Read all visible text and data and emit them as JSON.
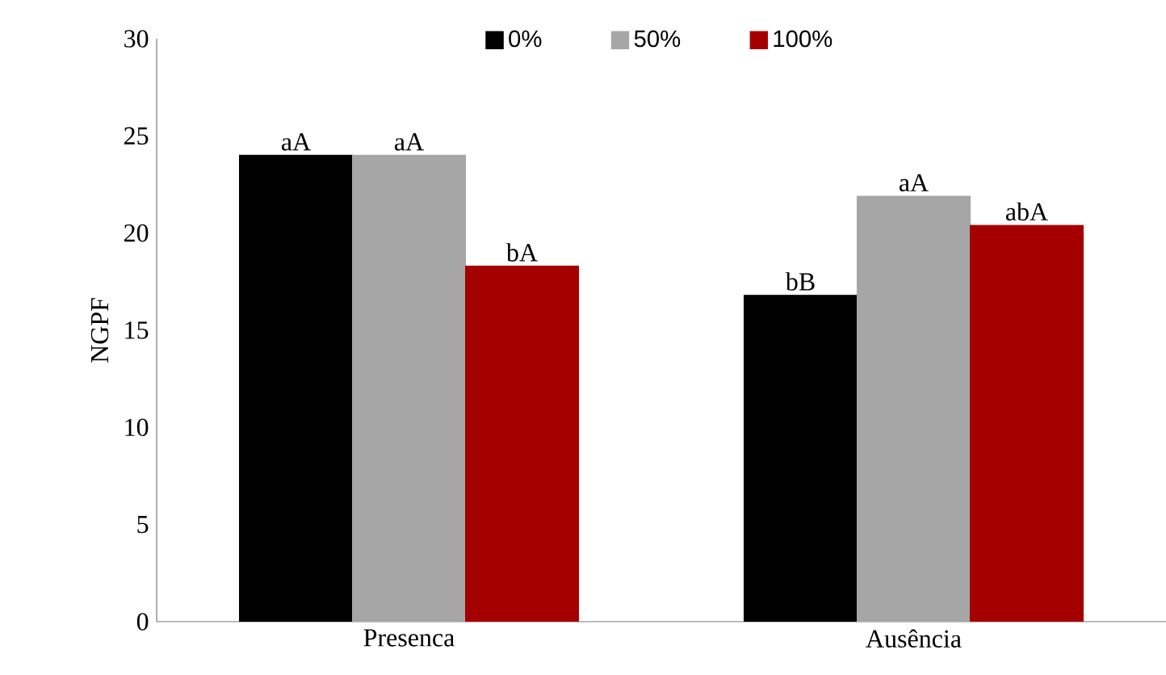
{
  "chart_data": {
    "type": "bar",
    "ylabel": "NGPF",
    "categories": [
      "Presenca",
      "Ausência"
    ],
    "series": [
      {
        "name": "0%",
        "color": "#000000",
        "values": [
          24.0,
          16.8
        ],
        "value_labels": [
          "aA",
          "bB"
        ]
      },
      {
        "name": "50%",
        "color": "#a6a6a6",
        "values": [
          24.0,
          21.9
        ],
        "value_labels": [
          "aA",
          "aA"
        ]
      },
      {
        "name": "100%",
        "color": "#a50000",
        "values": [
          18.3,
          20.4
        ],
        "value_labels": [
          "bA",
          "abA"
        ]
      }
    ],
    "ylim": [
      0,
      30
    ],
    "yticks": [
      0,
      5,
      10,
      15,
      20,
      25,
      30
    ],
    "grid": false,
    "legend": "top"
  }
}
